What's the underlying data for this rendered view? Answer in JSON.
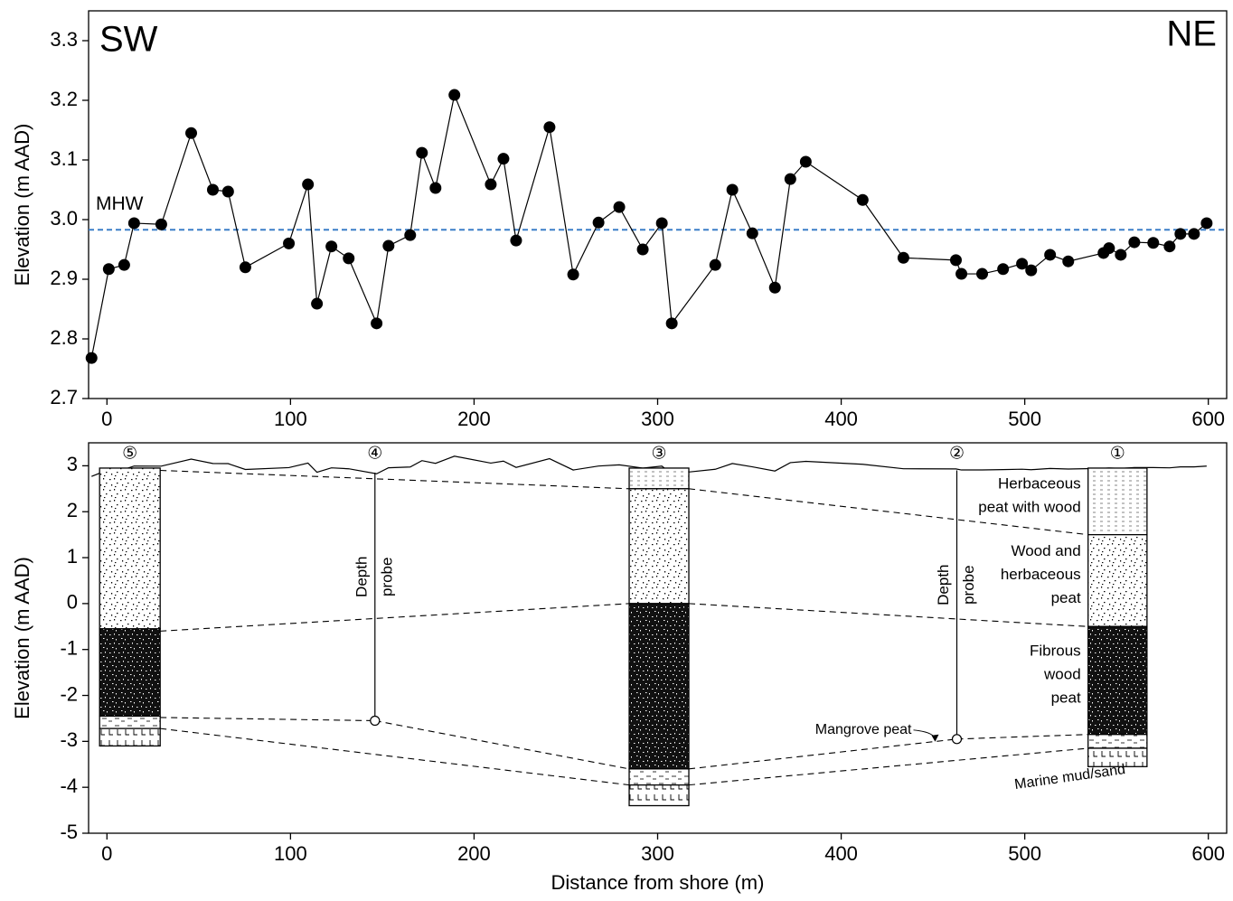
{
  "chart_data": [
    {
      "type": "line",
      "ylabel": "Elevation (m AAD)",
      "annotations": [
        "SW",
        "NE"
      ],
      "x": [
        -8.4,
        1,
        9.4,
        14.8,
        29.6,
        45.9,
        57.7,
        66,
        75.4,
        99.1,
        109.5,
        114.4,
        122.3,
        131.7,
        146.9,
        153.4,
        165.2,
        171.6,
        179,
        189.3,
        209.1,
        216,
        222.9,
        241.1,
        254,
        267.8,
        279.1,
        291.9,
        302.3,
        307.7,
        331.4,
        340.7,
        351.6,
        363.9,
        372.3,
        380.7,
        411.7,
        433.9,
        462.5,
        465.5,
        476.8,
        488.2,
        498.5,
        503.5,
        513.8,
        523.7,
        542.9,
        545.9,
        552.3,
        559.7,
        570,
        578.9,
        584.8,
        592.2,
        599.1
      ],
      "series": [
        {
          "color": "#000000",
          "values": [
            2.768,
            2.917,
            2.924,
            2.994,
            2.992,
            3.145,
            3.05,
            3.047,
            2.92,
            2.96,
            3.059,
            2.859,
            2.955,
            2.935,
            2.826,
            2.956,
            2.974,
            3.112,
            3.053,
            3.209,
            3.059,
            3.102,
            2.965,
            3.155,
            2.908,
            2.995,
            3.021,
            2.95,
            2.994,
            2.826,
            2.924,
            3.05,
            2.977,
            2.886,
            3.068,
            3.097,
            3.033,
            2.936,
            2.932,
            2.909,
            2.909,
            2.917,
            2.926,
            2.915,
            2.941,
            2.93,
            2.944,
            2.952,
            2.941,
            2.962,
            2.961,
            2.955,
            2.976,
            2.976,
            2.994
          ]
        }
      ],
      "hline": {
        "value": 2.983,
        "label": "MHW",
        "color": "#3b7fc8"
      },
      "xlim": [
        -10,
        610
      ],
      "xticks": [
        0,
        100,
        200,
        300,
        400,
        500,
        600
      ],
      "ylim": [
        2.7,
        3.35
      ],
      "yticks": [
        2.7,
        2.8,
        2.9,
        {
          "value": 3,
          "label": "3.0"
        },
        3.1,
        3.2,
        3.3
      ]
    },
    {
      "type": "section",
      "ylabel": "Elevation (m AAD)",
      "xlabel": "Distance from shore (m)",
      "xlim": [
        -10,
        610
      ],
      "xticks": [
        0,
        100,
        200,
        300,
        400,
        500,
        600
      ],
      "ylim": [
        -5,
        3.5
      ],
      "yticks": [
        -5,
        -4,
        -3,
        -2,
        -1,
        0,
        1,
        2,
        3
      ],
      "probe_label": [
        "Depth",
        "probe"
      ],
      "layers": [
        {
          "name": [
            "Herbaceous",
            "peat with wood"
          ]
        },
        {
          "name": [
            "Wood and",
            "herbaceous",
            "peat"
          ]
        },
        {
          "name": [
            "Fibrous",
            "wood",
            "peat"
          ]
        },
        {
          "name": [
            "Mangrove peat"
          ]
        },
        {
          "name": [
            "Marine mud/sand"
          ]
        }
      ],
      "columns": [
        {
          "label": "⑤",
          "x": [
            -4,
            29
          ],
          "tops": [
            null,
            2.95,
            -0.55,
            -2.45,
            -2.72
          ],
          "bottom": -3.1
        },
        {
          "label": "④",
          "x": 146,
          "top": 2.85,
          "bottom": -2.55
        },
        {
          "label": "③",
          "x": [
            284.5,
            317
          ],
          "tops": [
            2.95,
            2.5,
            0,
            -3.6,
            -3.95
          ],
          "bottom": -4.4
        },
        {
          "label": "②",
          "x": 463,
          "top": 2.9,
          "bottom": -2.95
        },
        {
          "label": "①",
          "x": [
            534.5,
            566.6
          ],
          "tops": [
            2.95,
            1.5,
            -0.5,
            -2.85,
            -3.15
          ],
          "bottom": -3.55
        }
      ],
      "correlations": [
        [
          2.9,
          null,
          2.5,
          null,
          1.5
        ],
        [
          -0.6,
          null,
          0,
          null,
          -0.5
        ],
        [
          -2.48,
          -2.55,
          -3.6,
          -2.95,
          -2.85
        ],
        [
          -2.72,
          null,
          -3.95,
          null,
          -3.15
        ]
      ]
    }
  ]
}
